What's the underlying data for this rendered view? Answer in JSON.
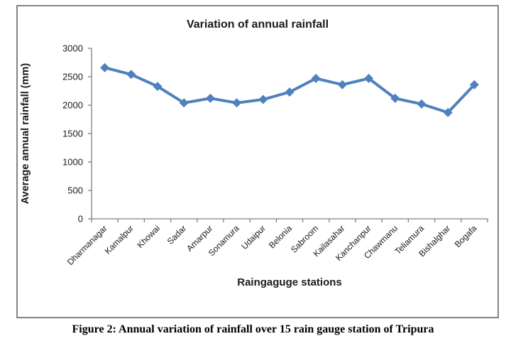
{
  "page": {
    "caption": "Figure 2: Annual variation of rainfall over 15 rain gauge station of Tripura"
  },
  "chart_data": {
    "type": "line",
    "title": "Variation of annual rainfall",
    "xlabel": "Raingaguge stations",
    "ylabel": "Average annual rainfall (mm)",
    "categories": [
      "Dharmanagar",
      "Kamalpur",
      "Khowai",
      "Sadar",
      "Amarpur",
      "Sonamura",
      "Udaipur",
      "Belonia",
      "Sabroom",
      "Kailasahar",
      "Kanchanpur",
      "Chawmanu",
      "Teliamura",
      "Bishalghar",
      "Bogafa"
    ],
    "values": [
      2660,
      2540,
      2330,
      2040,
      2120,
      2040,
      2100,
      2230,
      2470,
      2360,
      2470,
      2120,
      2020,
      1870,
      2360
    ],
    "ylim": [
      0,
      3000
    ],
    "ytick_step": 500,
    "yticks": [
      0,
      500,
      1000,
      1500,
      2000,
      2500,
      3000
    ],
    "grid": false,
    "legend": "none",
    "marker": "diamond",
    "line_color": "#4F81BD",
    "axis_color": "#808080",
    "x_label_rotation_deg": 45
  }
}
